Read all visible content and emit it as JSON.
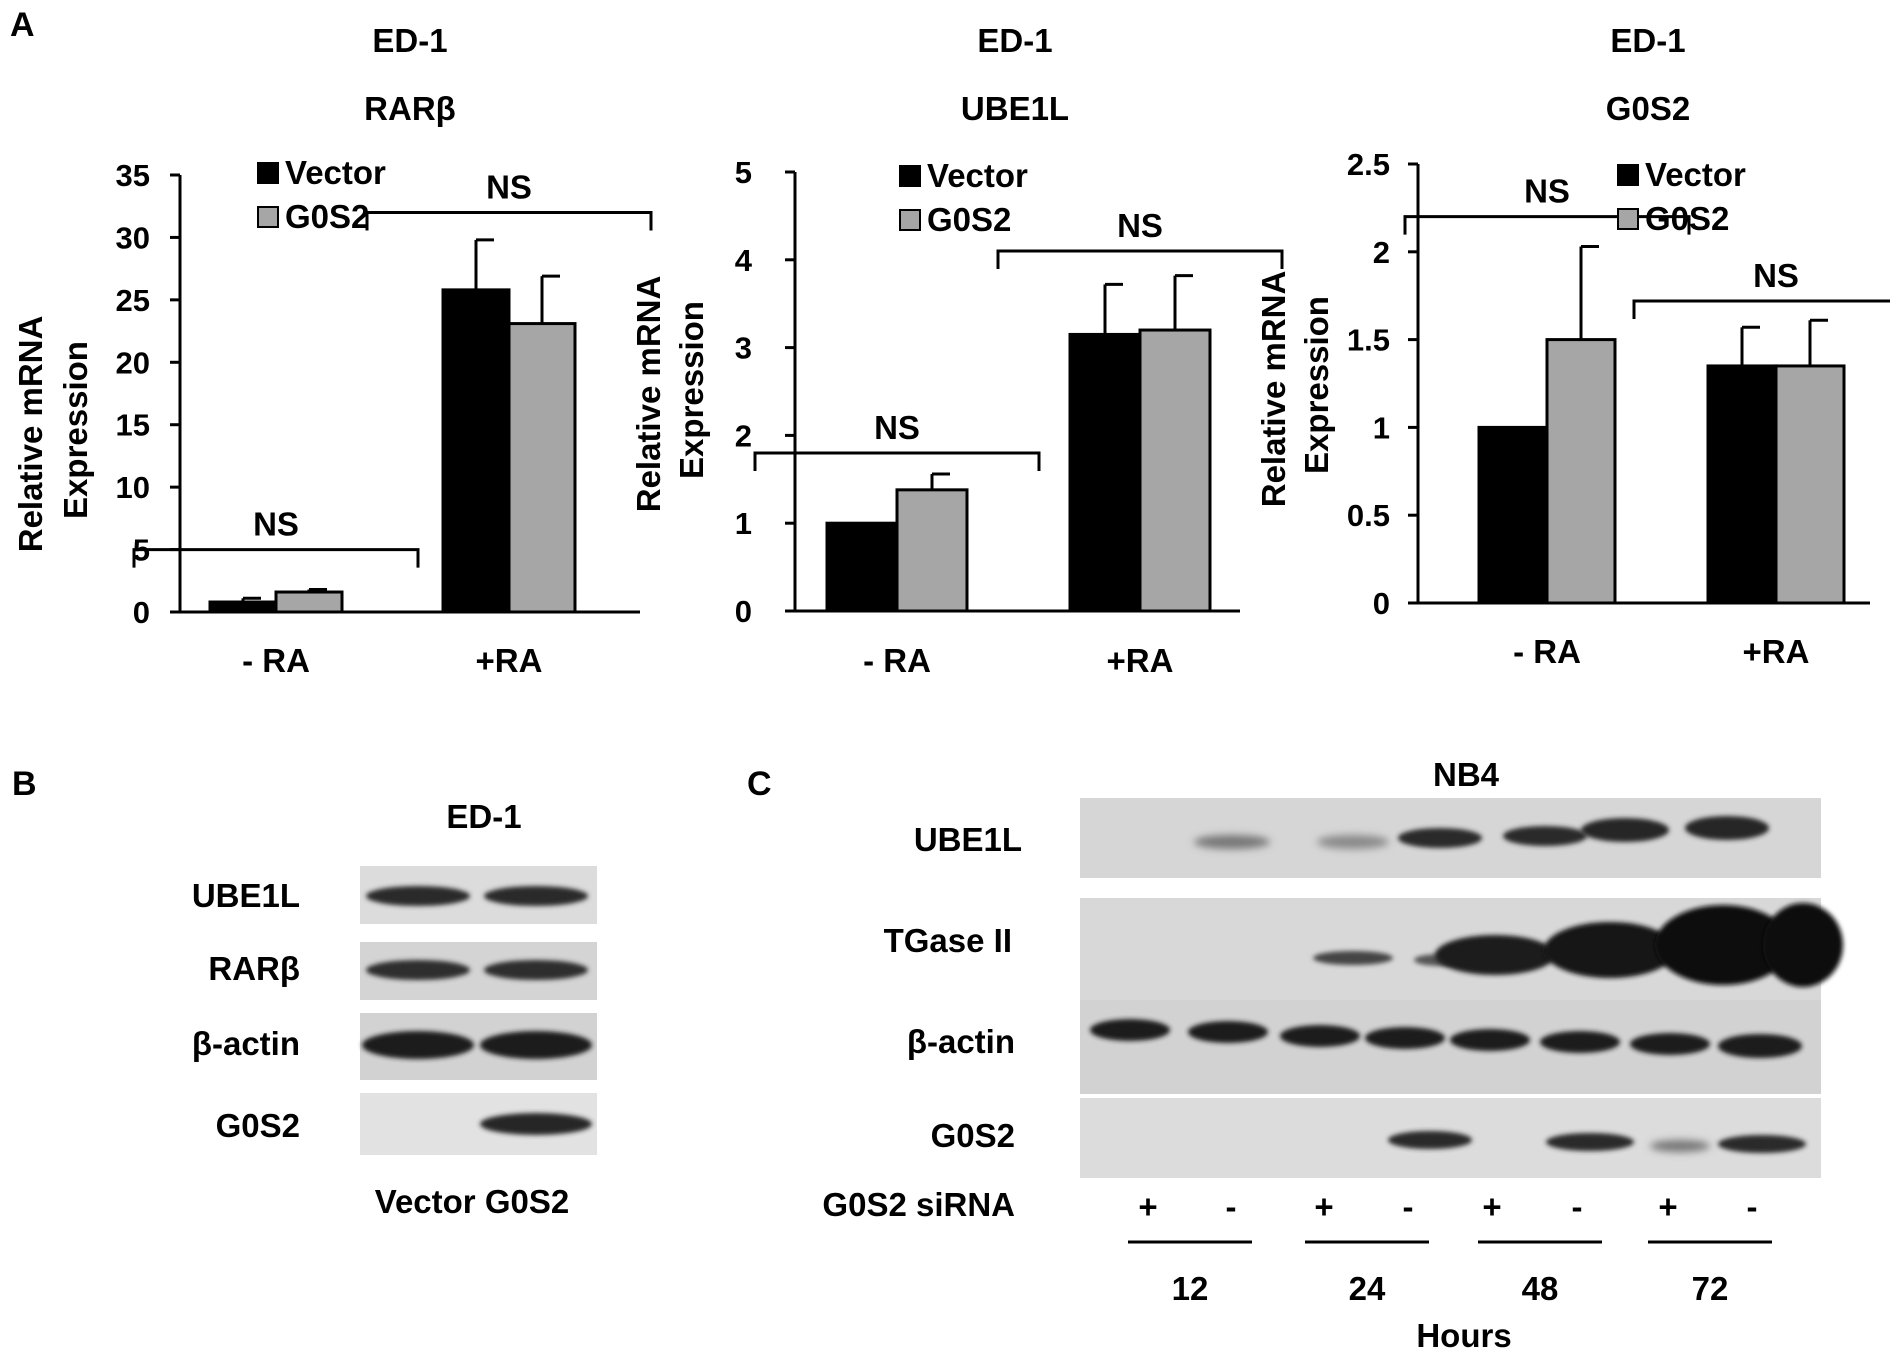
{
  "panel_labels": {
    "a": "A",
    "b": "B",
    "c": "C"
  },
  "chart_data": [
    {
      "type": "bar",
      "title": "ED-1",
      "subtitle": "RARβ",
      "ylabel": "Relative mRNA Expression",
      "ylabel_lines": [
        "Relative mRNA",
        "Expression"
      ],
      "xlabel": "",
      "categories": [
        "- RA",
        "+RA"
      ],
      "ylim": [
        0,
        35
      ],
      "yticks": [
        0,
        5,
        10,
        15,
        20,
        25,
        30,
        35
      ],
      "ytick_labels": [
        "0",
        "5",
        "10",
        "15",
        "20",
        "25",
        "30",
        "35"
      ],
      "grid": false,
      "legend": "top-left",
      "series": [
        {
          "name": "Vector",
          "color": "#000000",
          "values": [
            0.8,
            25.8
          ],
          "errors": [
            0.3,
            4.0
          ]
        },
        {
          "name": "G0S2",
          "color": "#a6a6a6",
          "values": [
            1.6,
            23.1
          ],
          "errors": [
            0.2,
            3.8
          ]
        }
      ],
      "annotations": [
        {
          "text": "NS",
          "category": 0,
          "level": 5
        },
        {
          "text": "NS",
          "category": 1,
          "level": 32
        }
      ]
    },
    {
      "type": "bar",
      "title": "ED-1",
      "subtitle": "UBE1L",
      "ylabel": "Relative mRNA Expression",
      "ylabel_lines": [
        "Relative mRNA",
        "Expression"
      ],
      "xlabel": "",
      "categories": [
        "- RA",
        "+RA"
      ],
      "ylim": [
        0,
        5
      ],
      "yticks": [
        0,
        1,
        2,
        3,
        4,
        5
      ],
      "ytick_labels": [
        "0",
        "1",
        "2",
        "3",
        "4",
        "5"
      ],
      "grid": false,
      "legend": "top-left",
      "series": [
        {
          "name": "Vector",
          "color": "#000000",
          "values": [
            1.0,
            3.15
          ],
          "errors": [
            0.0,
            0.57
          ]
        },
        {
          "name": "G0S2",
          "color": "#a6a6a6",
          "values": [
            1.38,
            3.2
          ],
          "errors": [
            0.18,
            0.62
          ]
        }
      ],
      "annotations": [
        {
          "text": "NS",
          "category": 0,
          "level": 1.8
        },
        {
          "text": "NS",
          "category": 1,
          "level": 4.1
        }
      ]
    },
    {
      "type": "bar",
      "title": "ED-1",
      "subtitle": "G0S2",
      "ylabel": "Relative mRNA Expression",
      "ylabel_lines": [
        "Relative mRNA",
        "Expression"
      ],
      "xlabel": "",
      "categories": [
        "- RA",
        "+RA"
      ],
      "ylim": [
        0,
        2.5
      ],
      "yticks": [
        0,
        0.5,
        1,
        1.5,
        2,
        2.5
      ],
      "ytick_labels": [
        "0",
        "0.5",
        "1",
        "1.5",
        "2",
        "2.5"
      ],
      "grid": false,
      "legend": "top-right",
      "series": [
        {
          "name": "Vector",
          "color": "#000000",
          "values": [
            1.0,
            1.35
          ],
          "errors": [
            0.0,
            0.22
          ]
        },
        {
          "name": "G0S2",
          "color": "#a6a6a6",
          "values": [
            1.5,
            1.35
          ],
          "errors": [
            0.53,
            0.26
          ]
        }
      ],
      "annotations": [
        {
          "text": "NS",
          "category": 0,
          "level": 2.2
        },
        {
          "text": "NS",
          "category": 1,
          "level": 1.72
        }
      ]
    }
  ],
  "blot_b": {
    "title": "ED-1",
    "bands": [
      "UBE1L",
      "RARβ",
      "β-actin",
      "G0S2"
    ],
    "lane_labels": "Vector G0S2"
  },
  "blot_c": {
    "title": "NB4",
    "bands": [
      "UBE1L",
      "TGase II",
      "β-actin",
      "G0S2"
    ],
    "sirna_label": "G0S2 siRNA",
    "sirna_signs": [
      "+",
      "-",
      "+",
      "-",
      "+",
      "-",
      "+",
      "-"
    ],
    "hours": [
      "12",
      "24",
      "48",
      "72"
    ],
    "hours_label": "Hours"
  }
}
